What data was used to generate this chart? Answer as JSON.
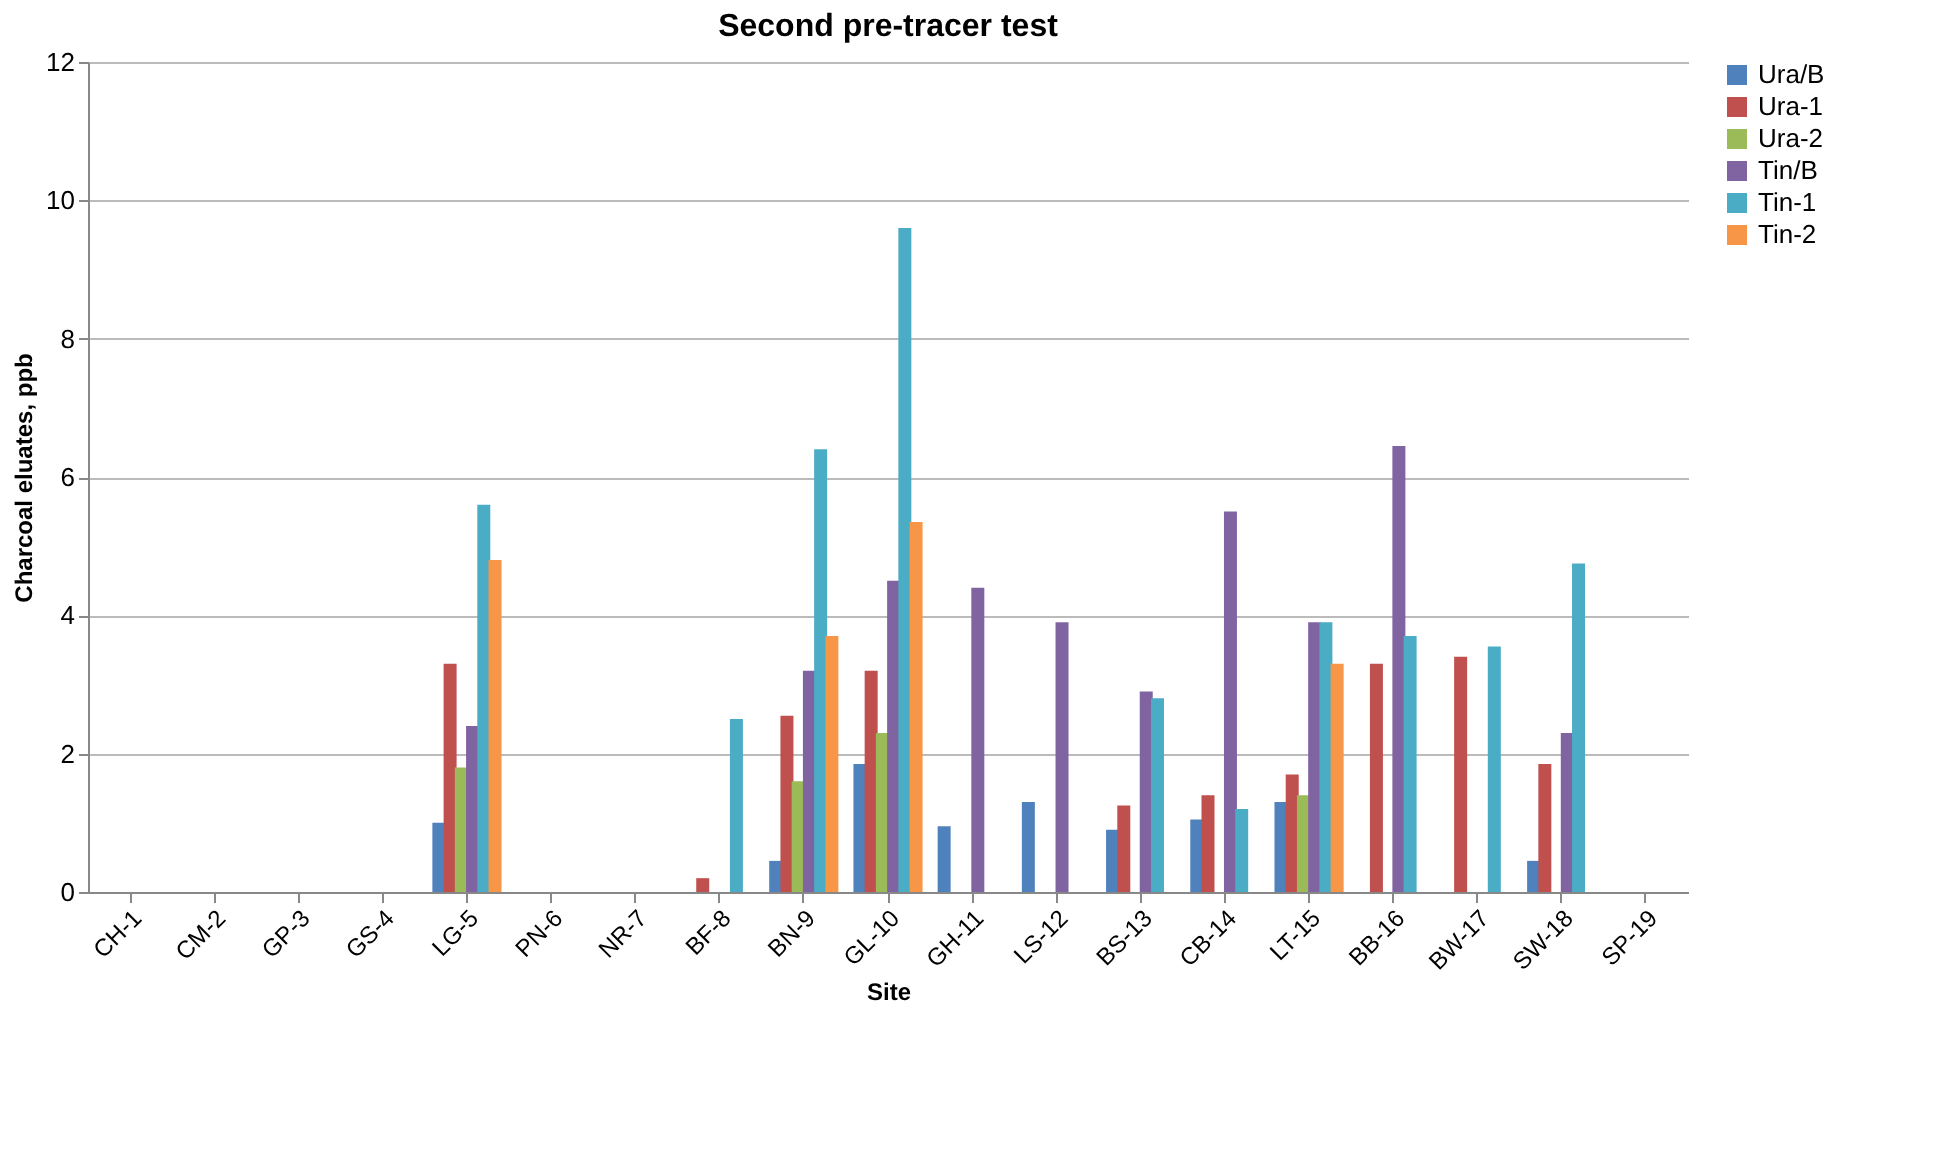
{
  "chart_data": {
    "type": "bar",
    "title": "Second  pre-tracer test",
    "xlabel": "Site",
    "ylabel": "Charcoal eluates, ppb",
    "categories": [
      "CH-1",
      "CM-2",
      "GP-3",
      "GS-4",
      "LG-5",
      "PN-6",
      "NR-7",
      "BF-8",
      "BN-9",
      "GL-10",
      "GH-11",
      "LS-12",
      "BS-13",
      "CB-14",
      "LT-15",
      "BB-16",
      "BW-17",
      "SW-18",
      "SP-19"
    ],
    "series": [
      {
        "name": "Ura/B",
        "color": "#4f81bd",
        "values": [
          null,
          null,
          null,
          null,
          1.0,
          null,
          null,
          null,
          0.45,
          1.85,
          0.95,
          1.3,
          0.9,
          1.05,
          1.3,
          null,
          null,
          0.45,
          null
        ]
      },
      {
        "name": "Ura-1",
        "color": "#c0504d",
        "values": [
          null,
          null,
          null,
          null,
          3.3,
          null,
          null,
          0.2,
          2.55,
          3.2,
          null,
          null,
          1.25,
          1.4,
          1.7,
          3.3,
          3.4,
          1.85,
          null
        ]
      },
      {
        "name": "Ura-2",
        "color": "#9bbb59",
        "values": [
          null,
          null,
          null,
          null,
          1.8,
          null,
          null,
          null,
          1.6,
          2.3,
          null,
          null,
          null,
          null,
          1.4,
          null,
          null,
          null,
          null
        ]
      },
      {
        "name": "Tin/B",
        "color": "#8064a2",
        "values": [
          null,
          null,
          null,
          null,
          2.4,
          null,
          null,
          null,
          3.2,
          4.5,
          4.4,
          3.9,
          2.9,
          5.5,
          3.9,
          6.45,
          null,
          2.3,
          null
        ]
      },
      {
        "name": "Tin-1",
        "color": "#4bacc6",
        "values": [
          null,
          null,
          null,
          null,
          5.6,
          null,
          null,
          2.5,
          6.4,
          9.6,
          null,
          null,
          2.8,
          1.2,
          3.9,
          3.7,
          3.55,
          4.75,
          null
        ]
      },
      {
        "name": "Tin-2",
        "color": "#f79646",
        "values": [
          null,
          null,
          null,
          null,
          4.8,
          null,
          null,
          null,
          3.7,
          5.35,
          null,
          null,
          null,
          null,
          3.3,
          null,
          null,
          null,
          null
        ]
      }
    ],
    "ylim": [
      0,
      12
    ],
    "yticks": [
      0,
      2,
      4,
      6,
      8,
      10,
      12
    ],
    "grid": "y",
    "legend": "right"
  }
}
